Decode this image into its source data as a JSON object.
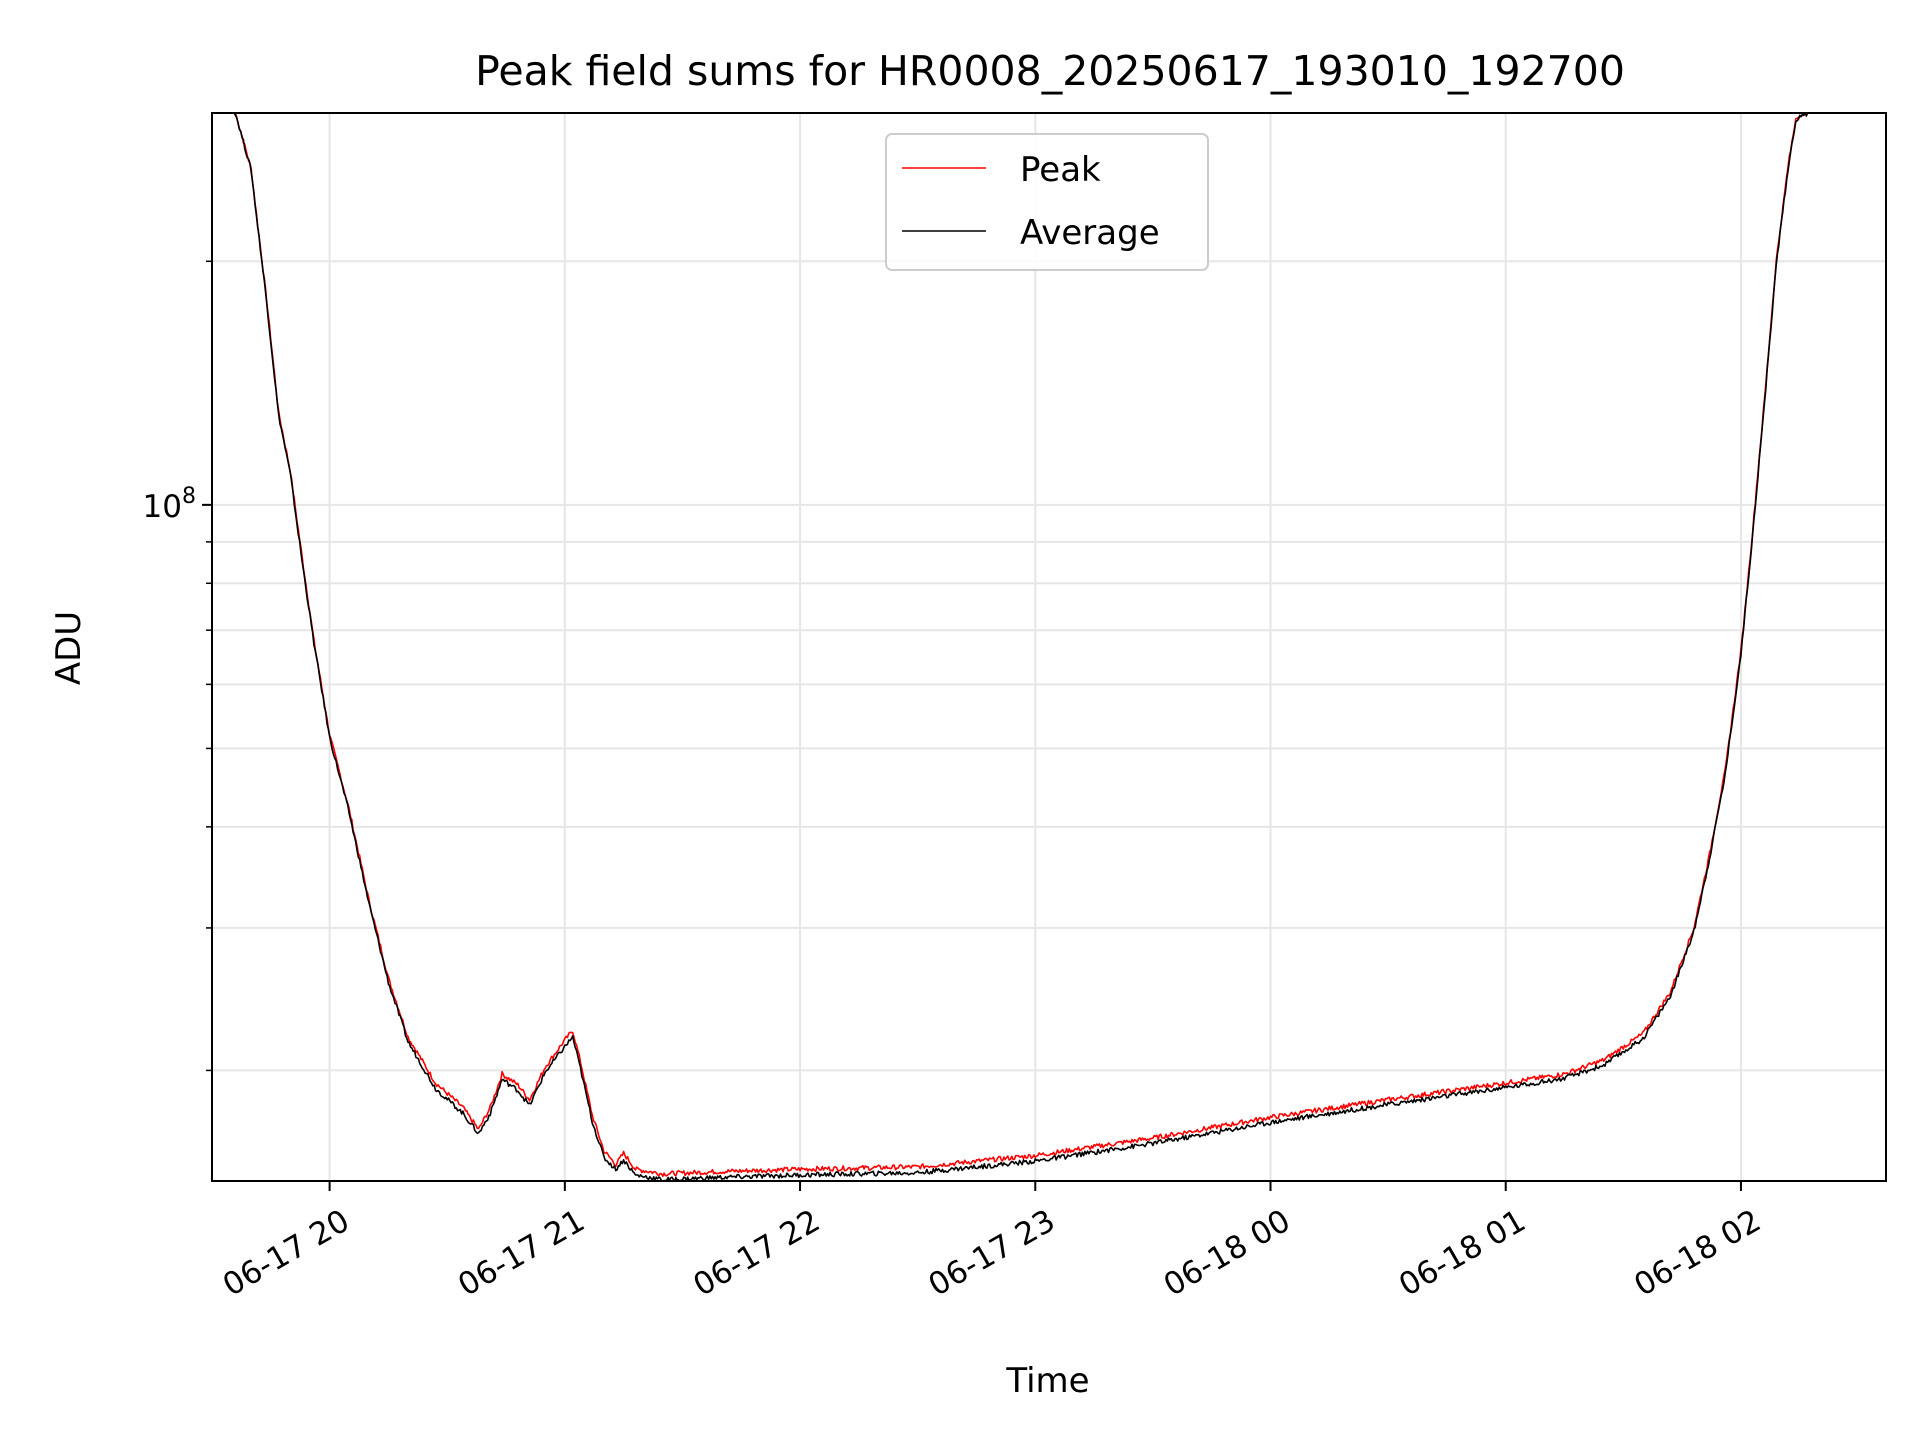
{
  "chart_data": {
    "type": "line",
    "title": "Peak field sums for HR0008_20250617_193010_192700",
    "xlabel": "Time",
    "ylabel": "ADU",
    "y_scale": "log",
    "ylim": [
      14600000,
      305000000
    ],
    "xlim": [
      "2025-06-17 19:30",
      "2025-06-18 02:37"
    ],
    "x_tick_labels": [
      "06-17 20",
      "06-17 21",
      "06-17 22",
      "06-17 23",
      "06-18 00",
      "06-18 01",
      "06-18 02"
    ],
    "y_major_tick_value": 100000000,
    "y_major_tick_label": {
      "base": "10",
      "exponent": "8"
    },
    "y_minor_ticks": [
      20000000,
      30000000,
      40000000,
      50000000,
      60000000,
      70000000,
      80000000,
      90000000,
      200000000
    ],
    "grid": true,
    "legend_position": "upper center",
    "series": [
      {
        "name": "Peak",
        "color": "#ff0000",
        "points": [
          [
            "2025-06-17 19:30",
            305000000
          ],
          [
            "2025-06-17 19:36",
            305000000
          ],
          [
            "2025-06-17 19:40",
            260000000
          ],
          [
            "2025-06-17 19:44",
            178000000
          ],
          [
            "2025-06-17 19:47",
            130000000
          ],
          [
            "2025-06-17 19:50",
            110000000
          ],
          [
            "2025-06-17 19:53",
            86000000
          ],
          [
            "2025-06-17 19:56",
            68000000
          ],
          [
            "2025-06-17 20:00",
            52000000
          ],
          [
            "2025-06-17 20:05",
            42000000
          ],
          [
            "2025-06-17 20:10",
            32500000
          ],
          [
            "2025-06-17 20:15",
            26000000
          ],
          [
            "2025-06-17 20:20",
            22000000
          ],
          [
            "2025-06-17 20:27",
            19300000
          ],
          [
            "2025-06-17 20:34",
            18000000
          ],
          [
            "2025-06-17 20:38",
            16900000
          ],
          [
            "2025-06-17 20:41",
            18000000
          ],
          [
            "2025-06-17 20:44",
            19800000
          ],
          [
            "2025-06-17 20:48",
            19200000
          ],
          [
            "2025-06-17 20:51",
            18400000
          ],
          [
            "2025-06-17 20:55",
            20200000
          ],
          [
            "2025-06-17 21:00",
            21800000
          ],
          [
            "2025-06-17 21:02",
            22400000
          ],
          [
            "2025-06-17 21:04",
            20500000
          ],
          [
            "2025-06-17 21:07",
            17600000
          ],
          [
            "2025-06-17 21:10",
            15900000
          ],
          [
            "2025-06-17 21:13",
            15300000
          ],
          [
            "2025-06-17 21:15",
            15800000
          ],
          [
            "2025-06-17 21:18",
            15100000
          ],
          [
            "2025-06-17 21:25",
            14900000
          ],
          [
            "2025-06-17 21:40",
            15000000
          ],
          [
            "2025-06-17 22:00",
            15100000
          ],
          [
            "2025-06-17 22:30",
            15200000
          ],
          [
            "2025-06-17 23:00",
            15700000
          ],
          [
            "2025-06-17 23:30",
            16500000
          ],
          [
            "2025-06-18 00:00",
            17500000
          ],
          [
            "2025-06-18 00:30",
            18400000
          ],
          [
            "2025-06-18 01:00",
            19300000
          ],
          [
            "2025-06-18 01:15",
            19800000
          ],
          [
            "2025-06-18 01:25",
            20600000
          ],
          [
            "2025-06-18 01:35",
            22200000
          ],
          [
            "2025-06-18 01:42",
            25000000
          ],
          [
            "2025-06-18 01:48",
            30000000
          ],
          [
            "2025-06-18 01:52",
            37000000
          ],
          [
            "2025-06-18 01:56",
            47000000
          ],
          [
            "2025-06-18 02:00",
            66000000
          ],
          [
            "2025-06-18 02:03",
            93000000
          ],
          [
            "2025-06-18 02:06",
            135000000
          ],
          [
            "2025-06-18 02:09",
            200000000
          ],
          [
            "2025-06-18 02:12",
            262000000
          ],
          [
            "2025-06-18 02:14",
            300000000
          ],
          [
            "2025-06-18 02:17",
            305000000
          ],
          [
            "2025-06-18 02:37",
            305000000
          ]
        ]
      },
      {
        "name": "Average",
        "color": "#000000",
        "points": [
          [
            "2025-06-17 19:30",
            305000000
          ],
          [
            "2025-06-17 19:36",
            305000000
          ],
          [
            "2025-06-17 19:40",
            259000000
          ],
          [
            "2025-06-17 19:44",
            177000000
          ],
          [
            "2025-06-17 19:47",
            129000000
          ],
          [
            "2025-06-17 19:50",
            109000000
          ],
          [
            "2025-06-17 19:53",
            85000000
          ],
          [
            "2025-06-17 19:56",
            67500000
          ],
          [
            "2025-06-17 20:00",
            51600000
          ],
          [
            "2025-06-17 20:05",
            41600000
          ],
          [
            "2025-06-17 20:10",
            32200000
          ],
          [
            "2025-06-17 20:15",
            25700000
          ],
          [
            "2025-06-17 20:20",
            21700000
          ],
          [
            "2025-06-17 20:27",
            19000000
          ],
          [
            "2025-06-17 20:34",
            17700000
          ],
          [
            "2025-06-17 20:38",
            16700000
          ],
          [
            "2025-06-17 20:41",
            17700000
          ],
          [
            "2025-06-17 20:44",
            19500000
          ],
          [
            "2025-06-17 20:48",
            18900000
          ],
          [
            "2025-06-17 20:51",
            18100000
          ],
          [
            "2025-06-17 20:55",
            19900000
          ],
          [
            "2025-06-17 21:00",
            21400000
          ],
          [
            "2025-06-17 21:02",
            22000000
          ],
          [
            "2025-06-17 21:04",
            20100000
          ],
          [
            "2025-06-17 21:07",
            17300000
          ],
          [
            "2025-06-17 21:10",
            15600000
          ],
          [
            "2025-06-17 21:13",
            15100000
          ],
          [
            "2025-06-17 21:15",
            15500000
          ],
          [
            "2025-06-17 21:18",
            14850000
          ],
          [
            "2025-06-17 21:25",
            14650000
          ],
          [
            "2025-06-17 21:40",
            14750000
          ],
          [
            "2025-06-17 22:00",
            14850000
          ],
          [
            "2025-06-17 22:30",
            14950000
          ],
          [
            "2025-06-17 23:00",
            15450000
          ],
          [
            "2025-06-17 23:30",
            16250000
          ],
          [
            "2025-06-18 00:00",
            17250000
          ],
          [
            "2025-06-18 00:30",
            18150000
          ],
          [
            "2025-06-18 01:00",
            19050000
          ],
          [
            "2025-06-18 01:15",
            19550000
          ],
          [
            "2025-06-18 01:25",
            20300000
          ],
          [
            "2025-06-18 01:35",
            21900000
          ],
          [
            "2025-06-18 01:42",
            24700000
          ],
          [
            "2025-06-18 01:48",
            29700000
          ],
          [
            "2025-06-18 01:52",
            36600000
          ],
          [
            "2025-06-18 01:56",
            46500000
          ],
          [
            "2025-06-18 02:00",
            65300000
          ],
          [
            "2025-06-18 02:03",
            92000000
          ],
          [
            "2025-06-18 02:06",
            133500000
          ],
          [
            "2025-06-18 02:09",
            198000000
          ],
          [
            "2025-06-18 02:12",
            260000000
          ],
          [
            "2025-06-18 02:14",
            299000000
          ],
          [
            "2025-06-18 02:17",
            305000000
          ],
          [
            "2025-06-18 02:37",
            305000000
          ]
        ]
      }
    ]
  }
}
